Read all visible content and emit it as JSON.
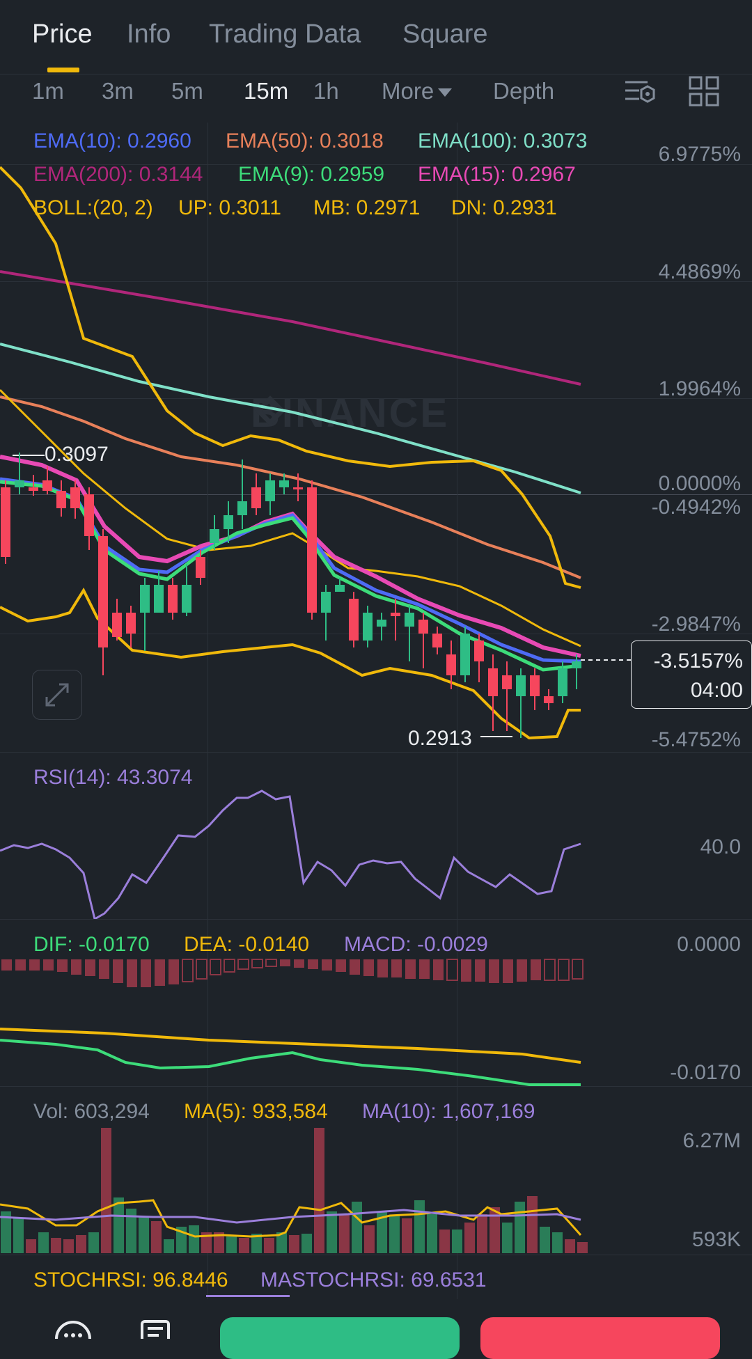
{
  "tabs": [
    "Price",
    "Info",
    "Trading Data",
    "Square"
  ],
  "intervals": {
    "i1m": "1m",
    "i3m": "3m",
    "i5m": "5m",
    "i15m": "15m",
    "i1h": "1h",
    "more": "More",
    "depth": "Depth"
  },
  "main_legend": {
    "ema10": "EMA(10): 0.2960",
    "ema50": "EMA(50): 0.3018",
    "ema100": "EMA(100): 0.3073",
    "ema200": "EMA(200): 0.3144",
    "ema9": "EMA(9): 0.2959",
    "ema15": "EMA(15): 0.2967",
    "boll": "BOLL:(20, 2)",
    "up": "UP: 0.3011",
    "mb": "MB: 0.2971",
    "dn": "DN: 0.2931"
  },
  "price_axis": [
    "6.9775%",
    "4.4869%",
    "1.9964%",
    "0.0000%",
    "-0.4942%",
    "-2.9847%",
    "-5.4752%"
  ],
  "current_price": {
    "change": "-3.5157%",
    "countdown": "04:00"
  },
  "callouts": {
    "high": "0.3097",
    "low": "0.2913"
  },
  "watermark": "BINANCE",
  "rsi": {
    "label": "RSI(14): 43.3074",
    "axis": "40.0"
  },
  "macd": {
    "dif": "DIF: -0.0170",
    "dea": "DEA: -0.0140",
    "macd": "MACD: -0.0029",
    "axis_top": "0.0000",
    "axis_bottom": "-0.0170"
  },
  "volume": {
    "vol": "Vol: 603,294",
    "ma5": "MA(5): 933,584",
    "ma10": "MA(10): 1,607,169",
    "axis_top": "6.27M",
    "axis_bottom": "593K"
  },
  "stochrsi": {
    "stoch": "STOCHRSI: 96.8446",
    "mastoch": "MASTOCHRSI: 69.6531"
  },
  "colors": {
    "ema10": "#4e6bf5",
    "ema50": "#e8805a",
    "ema100": "#7fe0c8",
    "ema200": "#b0267a",
    "ema9": "#3ddc7a",
    "ema15": "#e84ab5",
    "boll": "#f0b90b",
    "rsi": "#9b7fdb",
    "up": "#2ebd85",
    "down": "#f6465d"
  }
}
